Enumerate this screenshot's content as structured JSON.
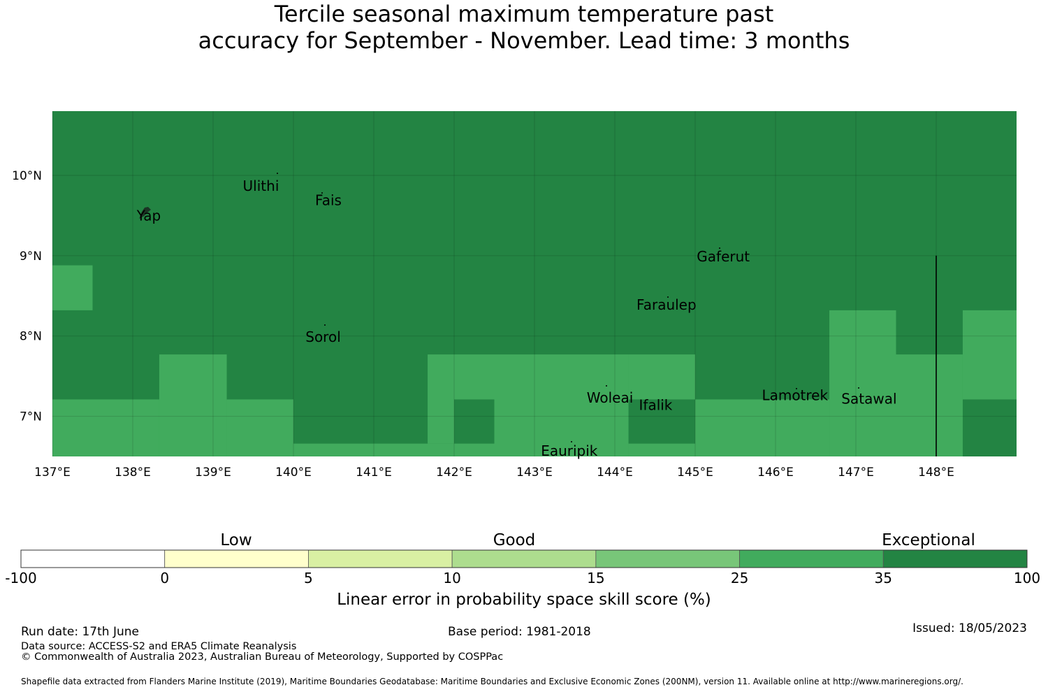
{
  "title": {
    "line1": "Tercile seasonal maximum temperature past",
    "line2": "accuracy for September - November. Lead time: 3 months"
  },
  "map": {
    "lon_range": [
      137,
      149
    ],
    "lat_range": [
      6.5,
      10.8
    ],
    "lat_ticks": [
      {
        "value": 10,
        "label": "10°N"
      },
      {
        "value": 9,
        "label": "9°N"
      },
      {
        "value": 8,
        "label": "8°N"
      },
      {
        "value": 7,
        "label": "7°N"
      }
    ],
    "lon_ticks": [
      {
        "value": 137,
        "label": "137°E"
      },
      {
        "value": 138,
        "label": "138°E"
      },
      {
        "value": 139,
        "label": "139°E"
      },
      {
        "value": 140,
        "label": "140°E"
      },
      {
        "value": 141,
        "label": "141°E"
      },
      {
        "value": 142,
        "label": "142°E"
      },
      {
        "value": 143,
        "label": "143°E"
      },
      {
        "value": 144,
        "label": "144°E"
      },
      {
        "value": 145,
        "label": "145°E"
      },
      {
        "value": 146,
        "label": "146°E"
      },
      {
        "value": 147,
        "label": "147°E"
      },
      {
        "value": 148,
        "label": "148°E"
      }
    ],
    "colors": {
      "exceptional": "#238443",
      "good_high": "#41ab5d"
    },
    "skill_regions": [
      {
        "category": "25-35",
        "lon": [
          137.0,
          137.5
        ],
        "lat": [
          8.32,
          8.88
        ]
      },
      {
        "category": "25-35",
        "lon": [
          137.0,
          138.33
        ],
        "lat": [
          6.5,
          7.21
        ]
      },
      {
        "category": "25-35",
        "lon": [
          138.33,
          139.17
        ],
        "lat": [
          6.5,
          7.77
        ]
      },
      {
        "category": "25-35",
        "lon": [
          139.17,
          140.0
        ],
        "lat": [
          6.5,
          7.21
        ]
      },
      {
        "category": "25-35",
        "lon": [
          140.0,
          142.5
        ],
        "lat": [
          6.5,
          6.66
        ]
      },
      {
        "category": "25-35",
        "lon": [
          141.67,
          142.0
        ],
        "lat": [
          6.66,
          7.77
        ]
      },
      {
        "category": "25-35",
        "lon": [
          142.0,
          142.5
        ],
        "lat": [
          7.21,
          7.77
        ]
      },
      {
        "category": "25-35",
        "lon": [
          142.5,
          144.17
        ],
        "lat": [
          6.5,
          7.77
        ]
      },
      {
        "category": "25-35",
        "lon": [
          144.17,
          145.0
        ],
        "lat": [
          7.21,
          7.77
        ]
      },
      {
        "category": "25-35",
        "lon": [
          144.17,
          145.0
        ],
        "lat": [
          6.5,
          6.66
        ]
      },
      {
        "category": "25-35",
        "lon": [
          145.0,
          146.67
        ],
        "lat": [
          6.5,
          7.21
        ]
      },
      {
        "category": "25-35",
        "lon": [
          146.67,
          147.5
        ],
        "lat": [
          6.5,
          8.32
        ]
      },
      {
        "category": "25-35",
        "lon": [
          147.5,
          148.33
        ],
        "lat": [
          6.5,
          7.77
        ]
      },
      {
        "category": "25-35",
        "lon": [
          148.33,
          149.0
        ],
        "lat": [
          7.21,
          8.32
        ]
      }
    ],
    "eez_boundary": {
      "lon": 148.0,
      "lat": [
        6.5,
        9.0
      ]
    },
    "places": [
      {
        "name": "Ulithi",
        "lon": 139.37,
        "lat": 9.87
      },
      {
        "name": "Fais",
        "lon": 140.27,
        "lat": 9.69
      },
      {
        "name": "Yap",
        "lon": 138.05,
        "lat": 9.5
      },
      {
        "name": "Gaferut",
        "lon": 145.02,
        "lat": 8.99
      },
      {
        "name": "Faraulep",
        "lon": 144.27,
        "lat": 8.39
      },
      {
        "name": "Sorol",
        "lon": 140.15,
        "lat": 7.99
      },
      {
        "name": "Woleai",
        "lon": 143.65,
        "lat": 7.23
      },
      {
        "name": "Ifalik",
        "lon": 144.3,
        "lat": 7.14
      },
      {
        "name": "Lamotrek",
        "lon": 145.83,
        "lat": 7.26
      },
      {
        "name": "Satawal",
        "lon": 146.82,
        "lat": 7.22
      },
      {
        "name": "Eauripik",
        "lon": 143.08,
        "lat": 6.57
      }
    ]
  },
  "legend": {
    "categories": [
      "Low",
      "Good",
      "Exceptional"
    ],
    "bins": [
      {
        "from": "-100",
        "to": "0",
        "color": "#ffffff"
      },
      {
        "from": "0",
        "to": "5",
        "color": "#ffffcc"
      },
      {
        "from": "5",
        "to": "10",
        "color": "#d9f0a3"
      },
      {
        "from": "10",
        "to": "15",
        "color": "#addd8e"
      },
      {
        "from": "15",
        "to": "25",
        "color": "#78c679"
      },
      {
        "from": "25",
        "to": "35",
        "color": "#41ab5d"
      },
      {
        "from": "35",
        "to": "100",
        "color": "#238443"
      }
    ],
    "ticks": [
      "-100",
      "0",
      "5",
      "10",
      "15",
      "25",
      "35",
      "100"
    ],
    "label": "Linear error in probability space skill score (%)"
  },
  "footer": {
    "run_date": "Run date: 17th June",
    "base_period": "Base period: 1981-2018",
    "issued": "Issued: 18/05/2023",
    "data_source": "Data source: ACCESS-S2 and ERA5 Climate Reanalysis",
    "copyright": "© Commonwealth of Australia 2023, Australian Bureau of Meteorology, Supported by COSPPac",
    "shapefile": "Shapefile data extracted from Flanders Marine Institute (2019), Maritime Boundaries Geodatabase: Maritime Boundaries and Exclusive Economic Zones (200NM), version 11. Available online at http://www.marineregions.org/."
  }
}
